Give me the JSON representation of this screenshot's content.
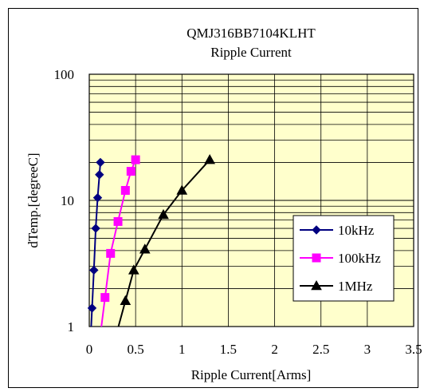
{
  "chart_data": {
    "type": "scatter",
    "title": "QMJ316BB7104KLHT",
    "subtitle": "Ripple Current",
    "xlabel": "Ripple Current[Arms]",
    "ylabel": "dTemp.[degreeC]",
    "xlim": [
      0,
      3.5
    ],
    "ylim": [
      1,
      100
    ],
    "yscale": "log",
    "x_ticks": [
      "0",
      "0.5",
      "1",
      "1.5",
      "2",
      "2.5",
      "3",
      "3.5"
    ],
    "y_ticks": [
      "1",
      "10",
      "100"
    ],
    "grid": true,
    "legend_position": "bottom-right",
    "plot_background": "#ffffcc",
    "series": [
      {
        "name": "10kHz",
        "color": "#000080",
        "marker": "diamond",
        "x": [
          0.03,
          0.05,
          0.07,
          0.09,
          0.11,
          0.12
        ],
        "y": [
          1.4,
          2.8,
          6,
          10.5,
          16,
          20
        ]
      },
      {
        "name": "100kHz",
        "color": "#ff00ff",
        "marker": "square",
        "x": [
          0.17,
          0.23,
          0.31,
          0.39,
          0.45,
          0.5
        ],
        "y": [
          1.7,
          3.8,
          6.8,
          12,
          17,
          21
        ]
      },
      {
        "name": "1MHz",
        "color": "#000000",
        "marker": "triangle",
        "x": [
          0.39,
          0.48,
          0.6,
          0.8,
          1.0,
          1.3
        ],
        "y": [
          1.6,
          2.8,
          4.1,
          7.7,
          12,
          21
        ]
      }
    ]
  }
}
